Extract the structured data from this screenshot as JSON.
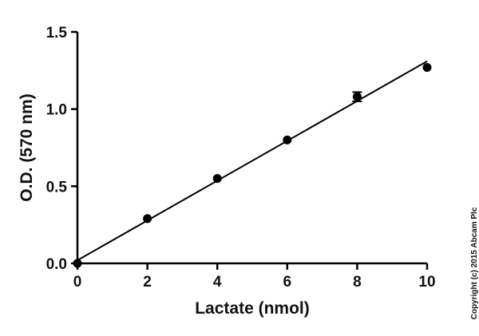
{
  "chart_data": {
    "type": "scatter",
    "xlabel": "Lactate (nmol)",
    "ylabel": "O.D. (570 nm)",
    "xlim": [
      0,
      10
    ],
    "ylim": [
      0,
      1.5
    ],
    "x_ticks": [
      "0",
      "2",
      "4",
      "6",
      "8",
      "10"
    ],
    "y_ticks": [
      "0.0",
      "0.5",
      "1.0",
      "1.5"
    ],
    "grid": false,
    "legend": "none",
    "series": [
      {
        "x": [
          0,
          2,
          4,
          6,
          8,
          10
        ],
        "y": [
          0.0,
          0.29,
          0.55,
          0.8,
          1.08,
          1.27
        ],
        "error": [
          0,
          0,
          0,
          0,
          0.03,
          0
        ]
      }
    ],
    "fit_line": {
      "x": [
        0,
        10
      ],
      "y": [
        0.02,
        1.31
      ]
    },
    "colors": {
      "marker": "#000000",
      "line": "#000000",
      "axis": "#000000"
    }
  },
  "copyright": "Copyright (c) 2015 Abcam Plc"
}
